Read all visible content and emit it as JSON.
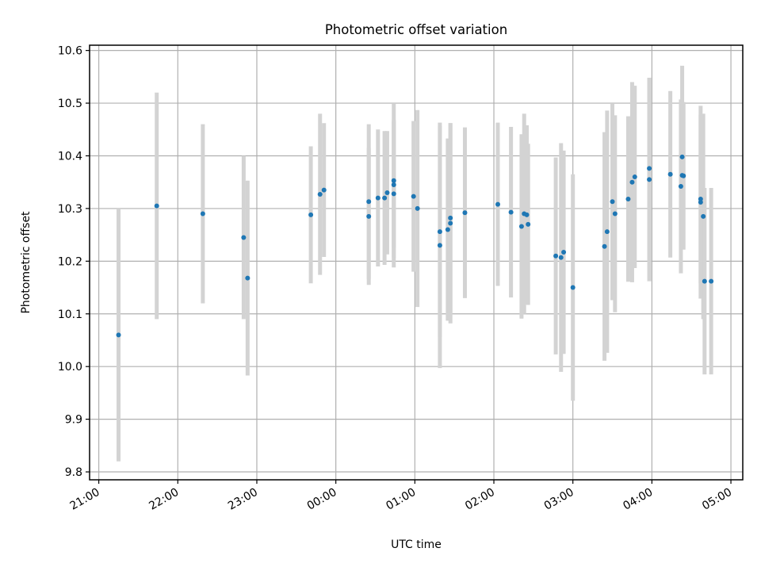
{
  "chart_data": {
    "type": "scatter",
    "title": "Photometric offset variation",
    "xlabel": "UTC time",
    "ylabel": "Photometric offset",
    "grid": true,
    "x_tick_labels": [
      "21:00",
      "22:00",
      "23:00",
      "00:00",
      "01:00",
      "02:00",
      "03:00",
      "04:00",
      "05:00"
    ],
    "y_tick_labels": [
      "9.8",
      "9.9",
      "10.0",
      "10.1",
      "10.2",
      "10.3",
      "10.4",
      "10.5",
      "10.6"
    ],
    "xlim": [
      "20:53",
      "05:09"
    ],
    "ylim": [
      9.785,
      10.61
    ],
    "point_color": "#1f77b4",
    "errorbar_color": "#d3d3d3",
    "series": [
      {
        "x": [
          "21:15",
          "21:44",
          "22:19",
          "22:50",
          "22:53",
          "23:41",
          "23:48",
          "23:51",
          "00:25",
          "00:25",
          "00:32",
          "00:37",
          "00:39",
          "00:44",
          "00:44",
          "00:44",
          "00:59",
          "01:02",
          "01:19",
          "01:19",
          "01:25",
          "01:27",
          "01:27",
          "01:38",
          "02:03",
          "02:13",
          "02:21",
          "02:23",
          "02:25",
          "02:26",
          "02:47",
          "02:51",
          "02:53",
          "03:00",
          "03:24",
          "03:26",
          "03:30",
          "03:32",
          "03:42",
          "03:45",
          "03:47",
          "03:58",
          "03:58",
          "04:14",
          "04:22",
          "04:23",
          "04:23",
          "04:24",
          "04:37",
          "04:37",
          "04:39",
          "04:40",
          "04:45"
        ],
        "y": [
          10.06,
          10.305,
          10.29,
          10.245,
          10.168,
          10.288,
          10.327,
          10.335,
          10.285,
          10.313,
          10.32,
          10.32,
          10.33,
          10.328,
          10.345,
          10.353,
          10.323,
          10.3,
          10.23,
          10.256,
          10.26,
          10.282,
          10.272,
          10.292,
          10.308,
          10.293,
          10.266,
          10.29,
          10.288,
          10.27,
          10.21,
          10.207,
          10.217,
          10.15,
          10.228,
          10.256,
          10.313,
          10.29,
          10.318,
          10.35,
          10.36,
          10.355,
          10.376,
          10.365,
          10.342,
          10.363,
          10.398,
          10.362,
          10.312,
          10.318,
          10.285,
          10.162,
          10.162
        ],
        "yerr": [
          0.24,
          0.215,
          0.17,
          0.155,
          0.185,
          0.13,
          0.153,
          0.127,
          0.13,
          0.147,
          0.13,
          0.127,
          0.117,
          0.14,
          0.12,
          0.147,
          0.143,
          0.187,
          0.233,
          0.2,
          0.173,
          0.18,
          0.19,
          0.162,
          0.155,
          0.162,
          0.175,
          0.19,
          0.17,
          0.153,
          0.187,
          0.217,
          0.193,
          0.215,
          0.217,
          0.23,
          0.187,
          0.187,
          0.157,
          0.19,
          0.173,
          0.193,
          0.172,
          0.158,
          0.165,
          0.14,
          0.173,
          0.14,
          0.183,
          0.16,
          0.195,
          0.177,
          0.177
        ]
      }
    ]
  }
}
